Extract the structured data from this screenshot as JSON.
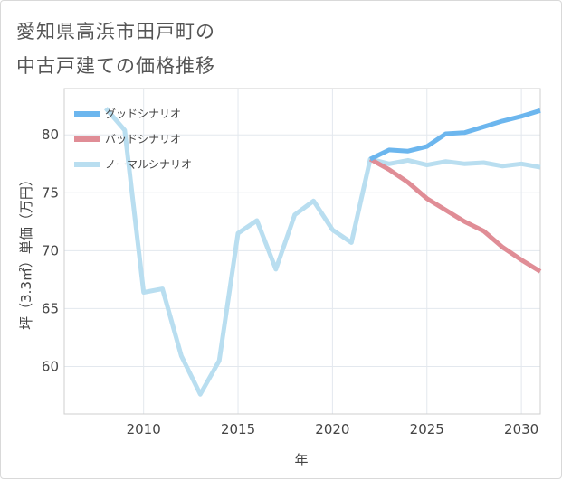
{
  "title_lines": [
    "愛知県高浜市田戸町の",
    "中古戸建ての価格推移"
  ],
  "chart_data": {
    "type": "line",
    "title": "愛知県高浜市田戸町の中古戸建ての価格推移",
    "xlabel": "年",
    "ylabel": "坪（3.3㎡）単価（万円）",
    "xlim": [
      2005.8,
      2031
    ],
    "ylim": [
      55.9,
      84
    ],
    "xticks": [
      2010,
      2015,
      2020,
      2025,
      2030
    ],
    "yticks": [
      60,
      65,
      70,
      75,
      80
    ],
    "grid": true,
    "legend_position": "top-left",
    "series": [
      {
        "name": "グッドシナリオ",
        "color": "#6cb6ee",
        "x": [
          2022,
          2023,
          2024,
          2025,
          2026,
          2027,
          2028,
          2029,
          2030,
          2031
        ],
        "values": [
          77.9,
          78.7,
          78.6,
          79.0,
          80.1,
          80.2,
          80.7,
          81.2,
          81.6,
          82.1
        ]
      },
      {
        "name": "バッドシナリオ",
        "color": "#e08d96",
        "x": [
          2022,
          2023,
          2024,
          2025,
          2026,
          2027,
          2028,
          2029,
          2030,
          2031
        ],
        "values": [
          77.9,
          77.0,
          75.9,
          74.5,
          73.5,
          72.5,
          71.7,
          70.3,
          69.2,
          68.2
        ]
      },
      {
        "name": "ノーマルシナリオ",
        "color": "#b9def0",
        "x": [
          2008,
          2009,
          2010,
          2011,
          2012,
          2013,
          2014,
          2015,
          2016,
          2017,
          2018,
          2019,
          2020,
          2021,
          2022,
          2023,
          2024,
          2025,
          2026,
          2027,
          2028,
          2029,
          2030,
          2031
        ],
        "values": [
          82.3,
          80.4,
          66.4,
          66.7,
          60.9,
          57.6,
          60.5,
          71.5,
          72.6,
          68.4,
          73.1,
          74.3,
          71.8,
          70.7,
          77.9,
          77.5,
          77.8,
          77.4,
          77.7,
          77.5,
          77.6,
          77.3,
          77.5,
          77.2
        ]
      }
    ]
  }
}
